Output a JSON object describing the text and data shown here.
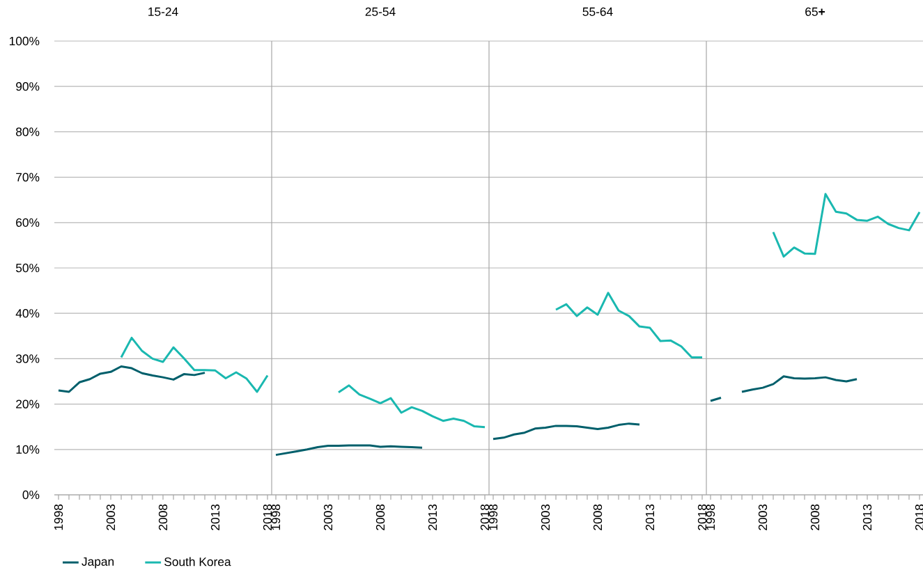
{
  "chart_data": [
    {
      "type": "line",
      "title": "15-24",
      "x": [
        1998,
        1999,
        2000,
        2001,
        2002,
        2003,
        2004,
        2005,
        2006,
        2007,
        2008,
        2009,
        2010,
        2011,
        2012,
        2013,
        2014,
        2015,
        2016,
        2017,
        2018
      ],
      "xlim": [
        1997.6,
        2018.4
      ],
      "xticks": [
        1998,
        {
          "value": 1999,
          "label": null
        },
        {
          "value": 2000,
          "label": null
        },
        {
          "value": 2001,
          "label": null
        },
        {
          "value": 2002,
          "label": null
        },
        2003,
        {
          "value": 2004,
          "label": null
        },
        {
          "value": 2005,
          "label": null
        },
        {
          "value": 2006,
          "label": null
        },
        {
          "value": 2007,
          "label": null
        },
        2008,
        {
          "value": 2009,
          "label": null
        },
        {
          "value": 2010,
          "label": null
        },
        {
          "value": 2011,
          "label": null
        },
        {
          "value": 2012,
          "label": null
        },
        2013,
        {
          "value": 2014,
          "label": null
        },
        {
          "value": 2015,
          "label": null
        },
        {
          "value": 2016,
          "label": null
        },
        {
          "value": 2017,
          "label": null
        },
        2018
      ],
      "ylim": [
        0,
        100
      ],
      "yticks": [
        {
          "value": 0,
          "label": "0%"
        },
        {
          "value": 10,
          "label": "10%"
        },
        {
          "value": 20,
          "label": "20%"
        },
        {
          "value": 30,
          "label": "30%"
        },
        {
          "value": 40,
          "label": "40%"
        },
        {
          "value": 50,
          "label": "50%"
        },
        {
          "value": 60,
          "label": "60%"
        },
        {
          "value": 70,
          "label": "70%"
        },
        {
          "value": 80,
          "label": "80%"
        },
        {
          "value": 90,
          "label": "90%"
        },
        {
          "value": 100,
          "label": "100%"
        }
      ],
      "grid": "y",
      "legend": "bottom",
      "series": [
        {
          "name": "Japan",
          "color": "#005f6b",
          "values": [
            23.0,
            22.7,
            24.8,
            25.5,
            26.7,
            27.1,
            28.3,
            27.9,
            26.8,
            26.3,
            25.9,
            25.4,
            26.6,
            26.4,
            26.9,
            null,
            null,
            null,
            null,
            null,
            null
          ]
        },
        {
          "name": "South Korea",
          "color": "#1ab8b0",
          "values": [
            null,
            null,
            null,
            null,
            null,
            null,
            30.3,
            34.6,
            31.7,
            30.0,
            29.3,
            32.5,
            30.1,
            27.5,
            27.5,
            27.4,
            25.7,
            27.0,
            25.6,
            22.7,
            26.3
          ]
        }
      ]
    },
    {
      "type": "line",
      "title": "25-54",
      "x": [
        1998,
        1999,
        2000,
        2001,
        2002,
        2003,
        2004,
        2005,
        2006,
        2007,
        2008,
        2009,
        2010,
        2011,
        2012,
        2013,
        2014,
        2015,
        2016,
        2017,
        2018
      ],
      "xlim": [
        1997.6,
        2018.4
      ],
      "xticks": [
        1998,
        {
          "value": 1999,
          "label": null
        },
        {
          "value": 2000,
          "label": null
        },
        {
          "value": 2001,
          "label": null
        },
        {
          "value": 2002,
          "label": null
        },
        2003,
        {
          "value": 2004,
          "label": null
        },
        {
          "value": 2005,
          "label": null
        },
        {
          "value": 2006,
          "label": null
        },
        {
          "value": 2007,
          "label": null
        },
        2008,
        {
          "value": 2009,
          "label": null
        },
        {
          "value": 2010,
          "label": null
        },
        {
          "value": 2011,
          "label": null
        },
        {
          "value": 2012,
          "label": null
        },
        2013,
        {
          "value": 2014,
          "label": null
        },
        {
          "value": 2015,
          "label": null
        },
        {
          "value": 2016,
          "label": null
        },
        {
          "value": 2017,
          "label": null
        },
        2018
      ],
      "ylim": [
        0,
        100
      ],
      "yticks": [
        0,
        10,
        20,
        30,
        40,
        50,
        60,
        70,
        80,
        90,
        100
      ],
      "grid": "y",
      "tick_labels": "x",
      "series": [
        {
          "color": "#005f6b",
          "values": [
            8.8,
            9.2,
            9.6,
            10.0,
            10.5,
            10.8,
            10.8,
            10.9,
            10.9,
            10.9,
            10.6,
            10.7,
            10.6,
            10.5,
            10.4,
            null,
            null,
            null,
            null,
            null,
            null
          ]
        },
        {
          "color": "#1ab8b0",
          "values": [
            null,
            null,
            null,
            null,
            null,
            null,
            22.6,
            24.1,
            22.1,
            21.2,
            20.2,
            21.3,
            18.1,
            19.3,
            18.5,
            17.3,
            16.3,
            16.8,
            16.3,
            15.1,
            14.9
          ]
        }
      ]
    },
    {
      "type": "line",
      "title": "55-64",
      "x": [
        1998,
        1999,
        2000,
        2001,
        2002,
        2003,
        2004,
        2005,
        2006,
        2007,
        2008,
        2009,
        2010,
        2011,
        2012,
        2013,
        2014,
        2015,
        2016,
        2017,
        2018
      ],
      "xlim": [
        1997.6,
        2018.4
      ],
      "xticks": [
        1998,
        {
          "value": 1999,
          "label": null
        },
        {
          "value": 2000,
          "label": null
        },
        {
          "value": 2001,
          "label": null
        },
        {
          "value": 2002,
          "label": null
        },
        2003,
        {
          "value": 2004,
          "label": null
        },
        {
          "value": 2005,
          "label": null
        },
        {
          "value": 2006,
          "label": null
        },
        {
          "value": 2007,
          "label": null
        },
        2008,
        {
          "value": 2009,
          "label": null
        },
        {
          "value": 2010,
          "label": null
        },
        {
          "value": 2011,
          "label": null
        },
        {
          "value": 2012,
          "label": null
        },
        2013,
        {
          "value": 2014,
          "label": null
        },
        {
          "value": 2015,
          "label": null
        },
        {
          "value": 2016,
          "label": null
        },
        {
          "value": 2017,
          "label": null
        },
        2018
      ],
      "ylim": [
        0,
        100
      ],
      "yticks": [
        0,
        10,
        20,
        30,
        40,
        50,
        60,
        70,
        80,
        90,
        100
      ],
      "grid": "y",
      "tick_labels": "x",
      "series": [
        {
          "color": "#005f6b",
          "values": [
            12.3,
            12.6,
            13.3,
            13.7,
            14.6,
            14.8,
            15.2,
            15.2,
            15.1,
            14.8,
            14.5,
            14.8,
            15.4,
            15.7,
            15.5,
            null,
            null,
            null,
            null,
            null,
            null
          ]
        },
        {
          "color": "#1ab8b0",
          "values": [
            null,
            null,
            null,
            null,
            null,
            null,
            40.8,
            42.0,
            39.4,
            41.3,
            39.7,
            44.5,
            40.6,
            39.4,
            37.1,
            36.8,
            33.9,
            34.0,
            32.7,
            30.3,
            30.3
          ]
        }
      ]
    },
    {
      "type": "line",
      "title": "65**+**",
      "x": [
        1998,
        1999,
        2000,
        2001,
        2002,
        2003,
        2004,
        2005,
        2006,
        2007,
        2008,
        2009,
        2010,
        2011,
        2012,
        2013,
        2014,
        2015,
        2016,
        2017,
        2018
      ],
      "xlim": [
        1997.6,
        2018.4
      ],
      "xticks": [
        1998,
        {
          "value": 1999,
          "label": null
        },
        {
          "value": 2000,
          "label": null
        },
        {
          "value": 2001,
          "label": null
        },
        {
          "value": 2002,
          "label": null
        },
        2003,
        {
          "value": 2004,
          "label": null
        },
        {
          "value": 2005,
          "label": null
        },
        {
          "value": 2006,
          "label": null
        },
        {
          "value": 2007,
          "label": null
        },
        2008,
        {
          "value": 2009,
          "label": null
        },
        {
          "value": 2010,
          "label": null
        },
        {
          "value": 2011,
          "label": null
        },
        {
          "value": 2012,
          "label": null
        },
        2013,
        {
          "value": 2014,
          "label": null
        },
        {
          "value": 2015,
          "label": null
        },
        {
          "value": 2016,
          "label": null
        },
        {
          "value": 2017,
          "label": null
        },
        2018
      ],
      "ylim": [
        0,
        100
      ],
      "yticks": [
        0,
        10,
        20,
        30,
        40,
        50,
        60,
        70,
        80,
        90,
        100
      ],
      "grid": "y",
      "tick_labels": "x",
      "series": [
        {
          "color": "#005f6b",
          "values": [
            20.7,
            21.4,
            null,
            22.7,
            23.2,
            23.6,
            24.4,
            26.1,
            25.7,
            25.6,
            25.7,
            25.9,
            25.3,
            25.0,
            25.5,
            null,
            null,
            null,
            null,
            null,
            null
          ]
        },
        {
          "color": "#1ab8b0",
          "values": [
            null,
            null,
            null,
            null,
            null,
            null,
            57.9,
            52.5,
            54.5,
            53.2,
            53.1,
            66.3,
            62.4,
            62.0,
            60.6,
            60.4,
            61.3,
            59.7,
            58.8,
            58.3,
            62.3
          ]
        }
      ]
    }
  ]
}
